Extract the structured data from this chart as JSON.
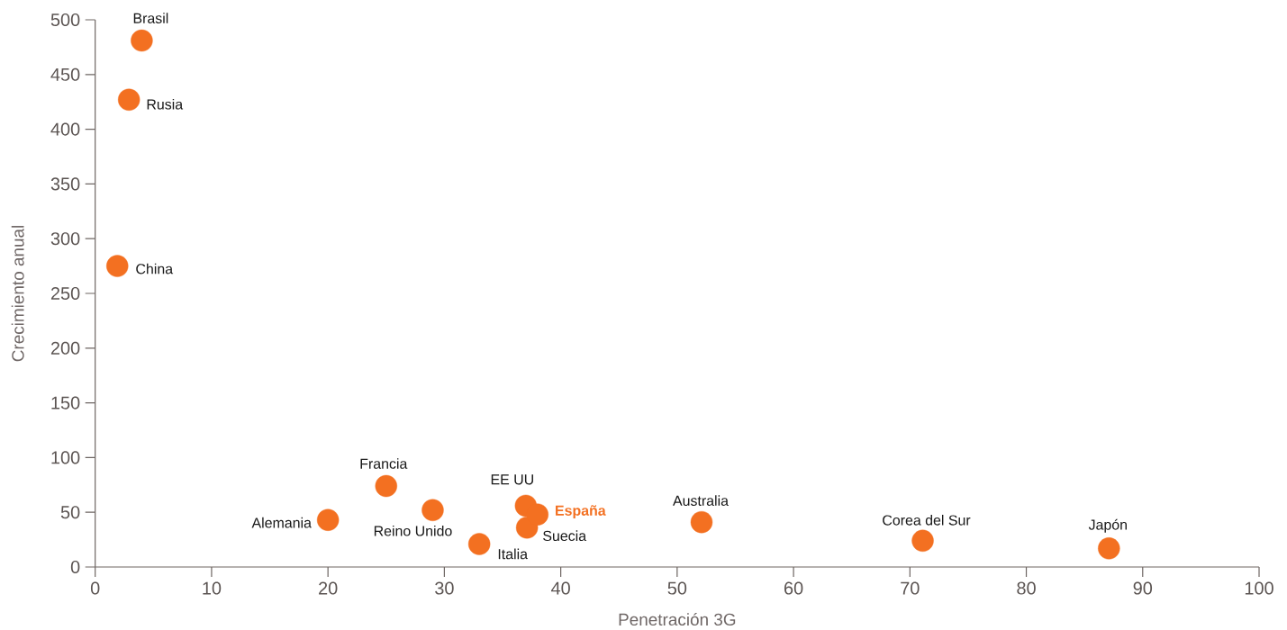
{
  "chart_data": {
    "type": "scatter",
    "xlabel": "Penetración 3G",
    "ylabel": "Crecimiento anual",
    "xlim": [
      0,
      100
    ],
    "ylim": [
      0,
      500
    ],
    "xticks": [
      0,
      10,
      20,
      30,
      40,
      50,
      60,
      70,
      80,
      90,
      100
    ],
    "yticks": [
      0,
      50,
      100,
      150,
      200,
      250,
      300,
      350,
      400,
      450,
      500
    ],
    "marker": "circle",
    "series": [
      {
        "color": "#f37021",
        "x": [
          4,
          2.9,
          1.9,
          20,
          25,
          29,
          33,
          37,
          37.1,
          52.1,
          71.1,
          87.1
        ],
        "values": [
          481,
          427,
          275,
          43,
          74,
          52,
          21,
          56,
          36,
          41,
          24,
          17
        ]
      },
      {
        "name": "España",
        "color": "#f37021",
        "x": [
          38
        ],
        "values": [
          48
        ]
      }
    ],
    "annotations": [
      {
        "text": "Brasil",
        "x": 4,
        "y": 481
      },
      {
        "text": "Rusia",
        "x": 2.9,
        "y": 427
      },
      {
        "text": "China",
        "x": 1.9,
        "y": 275
      },
      {
        "text": "Alemania",
        "x": 20,
        "y": 43
      },
      {
        "text": "Francia",
        "x": 25,
        "y": 74
      },
      {
        "text": "Reino Unido",
        "x": 29,
        "y": 52
      },
      {
        "text": "Italia",
        "x": 33,
        "y": 21
      },
      {
        "text": "EE UU",
        "x": 37,
        "y": 56
      },
      {
        "text": "Suecia",
        "x": 37.1,
        "y": 36
      },
      {
        "text": "Australia",
        "x": 52.1,
        "y": 41
      },
      {
        "text": "Corea del Sur",
        "x": 71.1,
        "y": 24
      },
      {
        "text": "Japón",
        "x": 87.1,
        "y": 17
      }
    ]
  }
}
